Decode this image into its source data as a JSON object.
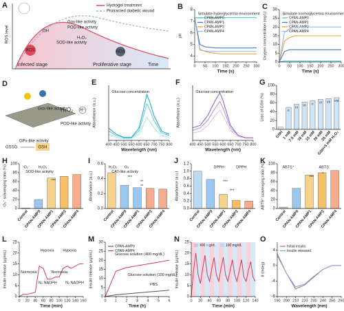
{
  "diagrams": {
    "A": {
      "panel": "A",
      "y_label": "ROS level",
      "legend": [
        "Hydrogel treatment",
        "Protracted diabetic wound"
      ],
      "labels": [
        "Gox-like activity",
        "POD-like activity",
        "SOD-like activity",
        "H₂O₂",
        "·OH",
        "ROS",
        "ROS",
        "Infected stage",
        "Proliferative stage",
        "Time"
      ]
    },
    "D": {
      "panel": "D",
      "labels": [
        "Gox-like activity",
        "POD-like activity",
        "GPx-like activity",
        "H₂O₂",
        "H⁺",
        "GSSG",
        "GSH"
      ]
    }
  },
  "chart_data": [
    {
      "type": "line",
      "panel": "B",
      "y_label": "pH",
      "x_label": "Time (s)",
      "annotations": [
        "Simulate hyperglycemia environment"
      ],
      "x": [
        0,
        25,
        50,
        75,
        100,
        125,
        150,
        175,
        200,
        225,
        250,
        275,
        300
      ],
      "xlim": [
        0,
        300
      ],
      "xticks": [
        0,
        50,
        100,
        150,
        200,
        250,
        300
      ],
      "ylim": [
        3.5,
        8
      ],
      "yticks": [
        4,
        5,
        6,
        7,
        8
      ],
      "series": [
        {
          "name": "CPAN-AMP0",
          "color": "#2ec4d6",
          "values": [
            7.3,
            7.3,
            7.3,
            7.3,
            7.3,
            7.3,
            7.3,
            7.3,
            7.3,
            7.3,
            7.3,
            7.3,
            7.3
          ]
        },
        {
          "name": "CPAN-AMP1",
          "color": "#2f6fd0",
          "values": [
            7.3,
            5.0,
            4.8,
            4.75,
            4.7,
            4.7,
            4.7,
            4.7,
            4.7,
            4.7,
            4.7,
            4.7,
            4.7
          ]
        },
        {
          "name": "CPAN-AMP2",
          "color": "#f29b2e",
          "values": [
            7.3,
            4.6,
            4.4,
            4.3,
            4.25,
            4.2,
            4.2,
            4.2,
            4.2,
            4.2,
            4.2,
            4.2,
            4.2
          ]
        },
        {
          "name": "CPAN-AMP4",
          "color": "#8fb3e8",
          "values": [
            7.3,
            4.5,
            4.45,
            4.4,
            4.4,
            4.4,
            4.4,
            4.4,
            4.4,
            4.4,
            4.4,
            4.4,
            4.4
          ]
        }
      ]
    },
    {
      "type": "line",
      "panel": "C",
      "y_label": "Oxygen concentration (mg/L)",
      "x_label": "Time (s)",
      "annotations": [
        "Simulate normoglycemia environment"
      ],
      "x": [
        0,
        25,
        50,
        75,
        100,
        125,
        150,
        175,
        200,
        225,
        250,
        275,
        300
      ],
      "xlim": [
        0,
        300
      ],
      "xticks": [
        0,
        50,
        100,
        150,
        200,
        250,
        300
      ],
      "ylim": [
        0,
        30
      ],
      "yticks": [
        0,
        5,
        10,
        15,
        20,
        25,
        30
      ],
      "series": [
        {
          "name": "CPAN-AMP0",
          "color": "#2ec4d6",
          "values": [
            0,
            0.5,
            0.5,
            0.5,
            0.5,
            0.5,
            0.5,
            0.5,
            0.5,
            0.5,
            0.5,
            0.5,
            0.5
          ]
        },
        {
          "name": "CPAN-AMP1",
          "color": "#2f6fd0",
          "values": [
            0,
            6,
            7,
            7,
            7,
            7,
            7,
            7,
            7,
            7,
            7,
            7,
            7
          ]
        },
        {
          "name": "CPAN-AMP2",
          "color": "#f29b2e",
          "values": [
            0,
            12,
            14,
            15,
            15,
            15,
            15,
            15,
            15,
            15,
            15,
            15,
            15
          ]
        },
        {
          "name": "CPAN-AMP4",
          "color": "#8fb3e8",
          "values": [
            0,
            17,
            19,
            20,
            20,
            20,
            20,
            20,
            20,
            20,
            20,
            20,
            20
          ]
        }
      ]
    },
    {
      "type": "line",
      "panel": "E",
      "y_label": "Absorbance (a.u.)",
      "x_label": "Wavelength (nm)",
      "annotations": [
        "Glucose concentration"
      ],
      "x": [
        400,
        450,
        500,
        550,
        600,
        625,
        652,
        675,
        700,
        750,
        800
      ],
      "xlim": [
        400,
        800
      ],
      "xticks": [
        400,
        450,
        500,
        550,
        600,
        650,
        700,
        750,
        800
      ],
      "ylim": [
        0,
        1.8
      ],
      "series": [
        {
          "color": "#a5e3ec",
          "values": [
            0.2,
            0.1,
            0.05,
            0.05,
            0.2,
            0.45,
            0.75,
            0.6,
            0.4,
            0.15,
            0.1
          ]
        },
        {
          "color": "#5ccbdc",
          "values": [
            0.3,
            0.16,
            0.08,
            0.08,
            0.32,
            0.72,
            1.2,
            0.96,
            0.64,
            0.24,
            0.16
          ]
        },
        {
          "color": "#1aa8c4",
          "values": [
            0.4,
            0.2,
            0.1,
            0.1,
            0.4,
            0.9,
            1.5,
            1.2,
            0.8,
            0.3,
            0.2
          ]
        }
      ]
    },
    {
      "type": "line",
      "panel": "F",
      "y_label": "Absorbance (a.u.)",
      "x_label": "Wavelength (nm)",
      "annotations": [
        "Glucose concentration"
      ],
      "x": [
        400,
        450,
        500,
        550,
        580,
        600,
        650,
        700,
        750,
        800
      ],
      "xlim": [
        400,
        800
      ],
      "xticks": [
        400,
        450,
        500,
        550,
        600,
        650,
        700,
        750,
        800
      ],
      "ylim": [
        0,
        2.2
      ],
      "series": [
        {
          "color": "#dcc4ea",
          "values": [
            0.3,
            0.35,
            0.6,
            1.0,
            1.2,
            1.0,
            0.4,
            0.15,
            0.1,
            0.1
          ]
        },
        {
          "color": "#b58fd6",
          "values": [
            0.4,
            0.5,
            0.8,
            1.3,
            1.55,
            1.3,
            0.5,
            0.2,
            0.1,
            0.1
          ]
        },
        {
          "color": "#8a5bbf",
          "values": [
            0.5,
            0.6,
            1.0,
            1.6,
            1.9,
            1.6,
            0.6,
            0.2,
            0.1,
            0.1
          ]
        }
      ]
    },
    {
      "type": "bar",
      "panel": "G",
      "y_label": "Loss of GSH (%)",
      "categories": [
        "GSH",
        "1 mM",
        "7.5 mM",
        "10 mM",
        "15 mM",
        "20 mM",
        "25 mM",
        "GSH+5 mM H₂O₂"
      ],
      "bar_labels": [
        "I",
        "II",
        "III",
        "IV",
        "V",
        "VI",
        "VII",
        "VIII"
      ],
      "values": [
        5,
        50,
        57,
        62,
        65,
        68,
        70,
        72
      ],
      "colors": [
        "#e6e6e6",
        "#cfe4f6",
        "#cfe4f6",
        "#cfe4f6",
        "#cfe4f6",
        "#cfe4f6",
        "#cfe4f6",
        "#cfe4f6"
      ],
      "ylim": [
        0,
        100
      ],
      "yticks": [
        0,
        20,
        40,
        60,
        80,
        100
      ]
    },
    {
      "type": "bar",
      "panel": "H",
      "y_label": "·O₂⁻ scavenging ratio (%)",
      "annotations": [
        "·O₂⁻",
        "H₂O₂",
        "SOD-like activity",
        "***"
      ],
      "categories": [
        "Control",
        "CPAN-AMP0",
        "CPAN-AMP1",
        "CPAN-AMP2",
        "CPAN-AMP4"
      ],
      "values": [
        1,
        20,
        68,
        72,
        76
      ],
      "colors": [
        "#cfcfcf",
        "#9cc8ef",
        "#f6d38a",
        "#f6c06a",
        "#f5ad8e"
      ],
      "ylim": [
        0,
        100
      ],
      "yticks": [
        0,
        20,
        40,
        60,
        80,
        100
      ]
    },
    {
      "type": "bar",
      "panel": "I",
      "y_label": "Absorbance (a.u.)",
      "annotations": [
        "H₂O₂",
        "O₂",
        "CAT-like activity",
        "***",
        "**",
        "**"
      ],
      "categories": [
        "Control",
        "CPAN-AMP0",
        "CPAN-AMP1",
        "CPAN-AMP2",
        "CPAN-AMP4"
      ],
      "values": [
        0.48,
        0.31,
        0.28,
        0.27,
        0.26
      ],
      "colors": [
        "#f6d38a",
        "#9cc8ef",
        "#9cc8ef",
        "#f5ad8e",
        "#f5ad8e"
      ],
      "ylim": [
        0,
        0.6
      ],
      "yticks": [
        {
          "value": 0,
          "label": "0.0"
        },
        0.2,
        0.4,
        0.6
      ]
    },
    {
      "type": "bar",
      "panel": "J",
      "y_label": "Absorbance (a.u.)",
      "annotations": [
        "DPPH·",
        "DPPH",
        "***",
        "***"
      ],
      "categories": [
        "Control",
        "CPAN-AMP0",
        "CPAN-AMP1",
        "CPAN-AMP2",
        "CPAN-AMP4"
      ],
      "values": [
        1.0,
        0.78,
        0.38,
        0.22,
        0.2
      ],
      "colors": [
        "#bcd9f2",
        "#9cc8ef",
        "#f6d38a",
        "#f6c06a",
        "#f5ad8e"
      ],
      "ylim": [
        0,
        1.2
      ],
      "yticks": [
        {
          "value": 0,
          "label": "0.0"
        },
        0.2,
        0.4,
        0.6,
        0.8,
        {
          "value": 1,
          "label": "1.0"
        },
        1.2
      ]
    },
    {
      "type": "bar",
      "panel": "K",
      "y_label": "ABTS⁺ scavenging ratio (%)",
      "annotations": [
        "ABTS⁺",
        "ABTS",
        "***",
        "*"
      ],
      "categories": [
        "Control",
        "CPAN-AMP0",
        "CPAN-AMP1",
        "CPAN-AMP2",
        "CPAN-AMP4"
      ],
      "values": [
        3,
        45,
        75,
        80,
        85
      ],
      "colors": [
        "#cfcfcf",
        "#9cc8ef",
        "#f6d38a",
        "#f6c06a",
        "#f5ad8e"
      ],
      "ylim": [
        0,
        100
      ],
      "yticks": [
        0,
        20,
        40,
        60,
        80,
        100
      ]
    },
    {
      "type": "line",
      "panel": "L",
      "y_label": "Insulin release (μg/mL)",
      "x_label": "Time (min)",
      "annotations": [
        "Normoxia",
        "Hypoxia",
        "Normoxia",
        "Hypoxia",
        "N₂ NADPH",
        "N₂ NADPH"
      ],
      "x": [
        0,
        10,
        20,
        30,
        40,
        50,
        60,
        70,
        80,
        90,
        100,
        110,
        120,
        130,
        140,
        150,
        160
      ],
      "xlim": [
        0,
        160
      ],
      "xticks": [
        0,
        20,
        40,
        60,
        80,
        100,
        120,
        140,
        160
      ],
      "ylim": [
        0,
        25
      ],
      "yticks": [
        0,
        5,
        10,
        15,
        20,
        25
      ],
      "series": [
        {
          "color": "#d43b5a",
          "values": [
            0,
            1,
            1,
            1.5,
            2,
            14,
            13,
            8,
            8,
            9,
            9,
            13,
            14,
            13,
            14,
            15,
            15
          ]
        }
      ]
    },
    {
      "type": "line",
      "panel": "M",
      "y_label": "Insulin release (μg/mL)",
      "x_label": "Time (h)",
      "annotations": [
        "Glucose solution (400 mg/dL)",
        "Glucose solution (100 mg/dL)",
        "PBS"
      ],
      "x": [
        0,
        1,
        2,
        3,
        4,
        5,
        6
      ],
      "xlim": [
        0,
        6
      ],
      "xticks": [
        0,
        1,
        2,
        3,
        4,
        5,
        6
      ],
      "ylim": [
        0,
        30
      ],
      "yticks": [
        0,
        5,
        10,
        15,
        20,
        25,
        30
      ],
      "series": [
        {
          "name": "CPAN-AMP0",
          "color": "#555555",
          "values": [
            0,
            1,
            1.5,
            2,
            2.5,
            3,
            3.5
          ]
        },
        {
          "name": "CPAN-AMP4",
          "color": "#d43b5a",
          "values": [
            0,
            14,
            16,
            17,
            18,
            19,
            20
          ]
        }
      ]
    },
    {
      "type": "line",
      "panel": "N",
      "y_label": "Insulin release (μg/mL)",
      "x_label": "Time (min)",
      "bands": [
        {
          "name": "400 mg/dL",
          "color": "#f4b6c6",
          "x": [
            [
              0,
              10
            ],
            [
              20,
              30
            ],
            [
              40,
              50
            ],
            [
              60,
              70
            ],
            [
              80,
              90
            ],
            [
              100,
              110
            ],
            [
              120,
              130
            ]
          ]
        },
        {
          "name": "100 mg/dL",
          "color": "#bcd8f0",
          "x": [
            [
              10,
              20
            ],
            [
              30,
              40
            ],
            [
              50,
              60
            ],
            [
              70,
              80
            ],
            [
              90,
              100
            ],
            [
              110,
              120
            ],
            [
              130,
              140
            ]
          ]
        }
      ],
      "x": [
        0,
        5,
        10,
        15,
        20,
        25,
        30,
        35,
        40,
        45,
        50,
        55,
        60,
        65,
        70,
        75,
        80,
        85,
        90,
        95,
        100,
        105,
        110,
        115,
        120,
        125,
        130,
        135,
        140
      ],
      "xlim": [
        0,
        140
      ],
      "xticks": [
        0,
        20,
        40,
        60,
        80,
        100,
        120,
        140
      ],
      "ylim": [
        0,
        25
      ],
      "yticks": [
        0,
        5,
        10,
        15,
        20,
        25
      ],
      "series": [
        {
          "color": "#d43b5a",
          "values": [
            0,
            12,
            20,
            10,
            6,
            13,
            19,
            10,
            7,
            13,
            18,
            10,
            7,
            13,
            18,
            10,
            7,
            12,
            17,
            10,
            7,
            12,
            17,
            9,
            7,
            12,
            16,
            9,
            7
          ]
        }
      ]
    },
    {
      "type": "line",
      "panel": "O",
      "y_label": "θ (mdeg)",
      "x_label": "Wavelength (nm)",
      "x": [
        190,
        200,
        210,
        220,
        230,
        240,
        250,
        260
      ],
      "xlim": [
        190,
        260
      ],
      "xticks": [
        190,
        200,
        210,
        220,
        230,
        240,
        250,
        260
      ],
      "ylim": [
        -8,
        6
      ],
      "yticks": [
        -8,
        -4,
        0,
        4
      ],
      "series": [
        {
          "name": "Initial insulin",
          "color": "#c05a8a",
          "values": [
            3,
            -2,
            -6,
            -5,
            -3,
            -1,
            0,
            0
          ]
        },
        {
          "name": "Insulin released",
          "color": "#7aa7d8",
          "values": [
            2.5,
            -2,
            -5.5,
            -4.8,
            -2.8,
            -1,
            0,
            0
          ]
        }
      ]
    }
  ]
}
